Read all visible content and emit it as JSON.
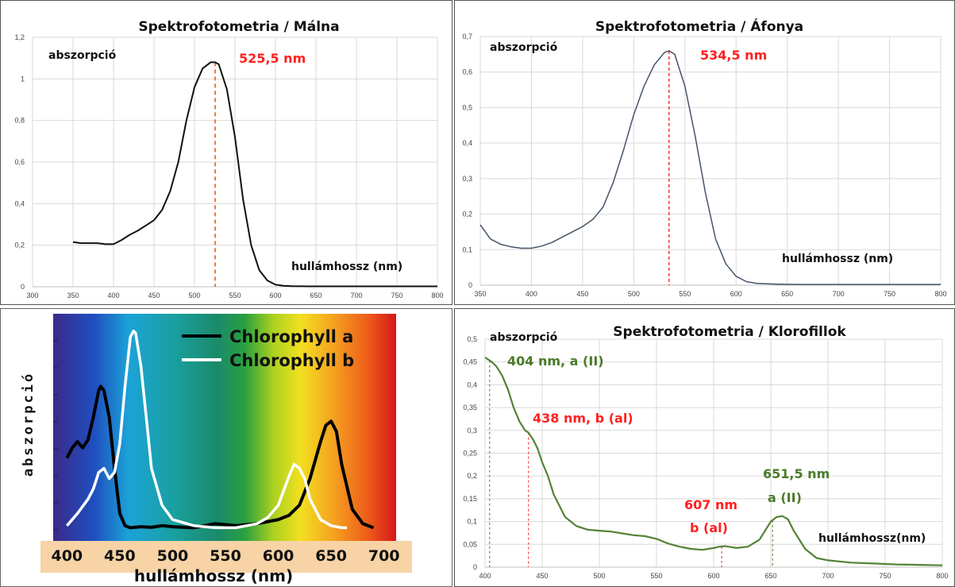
{
  "chart_data": [
    {
      "type": "line",
      "title": "Spektrofotometria / Málna",
      "xlabel": "hullámhossz (nm)",
      "ylabel": "abszorpció",
      "xlim": [
        300,
        800
      ],
      "ylim": [
        0,
        1.2
      ],
      "x_ticks": [
        "300",
        "350",
        "400",
        "450",
        "500",
        "550",
        "600",
        "650",
        "700",
        "750",
        "800"
      ],
      "y_ticks": [
        "0",
        "0,2",
        "0,4",
        "0,6",
        "0,8",
        "1",
        "1,2"
      ],
      "grid": true,
      "line_color": "#111111",
      "marker_color": "#ed7d31",
      "annotation": {
        "text": "525,5 nm",
        "x": 525.5,
        "color": "#ff2020"
      },
      "series": [
        {
          "x": [
            350,
            360,
            370,
            380,
            390,
            400,
            410,
            420,
            430,
            440,
            450,
            460,
            470,
            480,
            490,
            500,
            510,
            520,
            525.5,
            530,
            540,
            550,
            560,
            570,
            580,
            590,
            600,
            610,
            620,
            640,
            660,
            700,
            750,
            800
          ],
          "y": [
            0.215,
            0.21,
            0.21,
            0.21,
            0.205,
            0.205,
            0.225,
            0.25,
            0.27,
            0.295,
            0.32,
            0.37,
            0.46,
            0.6,
            0.8,
            0.96,
            1.05,
            1.08,
            1.08,
            1.07,
            0.95,
            0.72,
            0.42,
            0.2,
            0.08,
            0.03,
            0.01,
            0.005,
            0.003,
            0.002,
            0.002,
            0.002,
            0.002,
            0.002
          ]
        }
      ]
    },
    {
      "type": "line",
      "title": "Spektrofotometria / Áfonya",
      "xlabel": "hullámhossz (nm)",
      "ylabel": "abszorpció",
      "xlim": [
        350,
        800
      ],
      "ylim": [
        0,
        0.7
      ],
      "x_ticks": [
        "350",
        "400",
        "450",
        "500",
        "550",
        "600",
        "650",
        "700",
        "750",
        "800"
      ],
      "y_ticks": [
        "0",
        "0,1",
        "0,2",
        "0,3",
        "0,4",
        "0,5",
        "0,6",
        "0,7"
      ],
      "grid": true,
      "line_color": "#44546a",
      "marker_color": "#ff0000",
      "annotation": {
        "text": "534,5 nm",
        "x": 534.5,
        "color": "#ff2020"
      },
      "series": [
        {
          "x": [
            350,
            360,
            370,
            380,
            390,
            400,
            410,
            420,
            430,
            440,
            450,
            460,
            470,
            480,
            490,
            500,
            510,
            520,
            530,
            534.5,
            540,
            550,
            560,
            570,
            580,
            590,
            600,
            610,
            620,
            640,
            660,
            700,
            750,
            800
          ],
          "y": [
            0.17,
            0.13,
            0.115,
            0.108,
            0.104,
            0.104,
            0.11,
            0.12,
            0.135,
            0.15,
            0.165,
            0.185,
            0.22,
            0.29,
            0.38,
            0.48,
            0.56,
            0.62,
            0.655,
            0.66,
            0.65,
            0.56,
            0.42,
            0.26,
            0.13,
            0.06,
            0.025,
            0.01,
            0.005,
            0.003,
            0.002,
            0.002,
            0.002,
            0.002
          ]
        }
      ]
    },
    {
      "type": "line",
      "title": "",
      "xlabel": "hullámhossz (nm)",
      "ylabel": "abszorpció",
      "xlim": [
        390,
        710
      ],
      "ylim": [
        0,
        1
      ],
      "x_ticks": [
        "400",
        "450",
        "500",
        "550",
        "600",
        "650",
        "700"
      ],
      "grid": false,
      "background": "visible spectrum gradient",
      "series": [
        {
          "name": "Chlorophyll a",
          "color": "#000000",
          "x": [
            400,
            405,
            410,
            415,
            420,
            425,
            430,
            432,
            435,
            440,
            445,
            450,
            455,
            460,
            470,
            480,
            490,
            500,
            520,
            540,
            560,
            580,
            600,
            610,
            620,
            630,
            640,
            645,
            650,
            655,
            660,
            670,
            680,
            690
          ],
          "y": [
            0.35,
            0.4,
            0.43,
            0.4,
            0.44,
            0.55,
            0.68,
            0.7,
            0.68,
            0.55,
            0.3,
            0.08,
            0.02,
            0.01,
            0.015,
            0.012,
            0.02,
            0.015,
            0.01,
            0.03,
            0.02,
            0.03,
            0.05,
            0.07,
            0.12,
            0.25,
            0.43,
            0.51,
            0.53,
            0.48,
            0.32,
            0.1,
            0.03,
            0.01
          ]
        },
        {
          "name": "Chlorophyll b",
          "color": "#ffffff",
          "x": [
            400,
            410,
            420,
            425,
            430,
            435,
            440,
            445,
            450,
            455,
            460,
            463,
            465,
            470,
            475,
            480,
            490,
            500,
            520,
            540,
            560,
            580,
            590,
            600,
            610,
            615,
            620,
            625,
            630,
            640,
            650,
            660,
            665
          ],
          "y": [
            0.02,
            0.08,
            0.15,
            0.2,
            0.28,
            0.3,
            0.25,
            0.28,
            0.42,
            0.7,
            0.94,
            0.97,
            0.96,
            0.8,
            0.55,
            0.3,
            0.12,
            0.05,
            0.02,
            0.01,
            0.01,
            0.03,
            0.06,
            0.12,
            0.26,
            0.32,
            0.3,
            0.25,
            0.15,
            0.05,
            0.02,
            0.01,
            0.01
          ]
        }
      ]
    },
    {
      "type": "line",
      "title": "Spektrofotometria / Klorofillok",
      "xlabel": "hullámhossz(nm)",
      "ylabel": "abszorpció",
      "xlim": [
        400,
        800
      ],
      "ylim": [
        0,
        0.5
      ],
      "x_ticks": [
        "400",
        "450",
        "500",
        "550",
        "600",
        "650",
        "700",
        "750",
        "800"
      ],
      "y_ticks": [
        "0",
        "0,05",
        "0,1",
        "0,15",
        "0,2",
        "0,25",
        "0,3",
        "0,35",
        "0,4",
        "0,45",
        "0,5"
      ],
      "grid": true,
      "line_color": "#548235",
      "annotations": [
        {
          "text": "404 nm, a (II)",
          "x": 404,
          "color": "#4a7a2a"
        },
        {
          "text": "438 nm, b (al)",
          "x": 438,
          "color": "#ff2020"
        },
        {
          "text": "607 nm",
          "text2": "b (al)",
          "x": 607,
          "color": "#ff2020"
        },
        {
          "text": "651,5 nm",
          "text2": "a (II)",
          "x": 651.5,
          "color": "#4a7a2a"
        }
      ],
      "series": [
        {
          "x": [
            400,
            403,
            406,
            410,
            415,
            420,
            425,
            430,
            435,
            438,
            442,
            446,
            450,
            455,
            460,
            470,
            480,
            490,
            500,
            510,
            520,
            530,
            540,
            550,
            560,
            570,
            580,
            590,
            600,
            605,
            610,
            615,
            620,
            630,
            640,
            645,
            650,
            655,
            660,
            665,
            670,
            680,
            690,
            700,
            720,
            740,
            760,
            780,
            800
          ],
          "y": [
            0.46,
            0.455,
            0.45,
            0.44,
            0.42,
            0.39,
            0.35,
            0.32,
            0.3,
            0.295,
            0.28,
            0.26,
            0.23,
            0.2,
            0.16,
            0.11,
            0.09,
            0.082,
            0.08,
            0.078,
            0.074,
            0.07,
            0.068,
            0.062,
            0.052,
            0.045,
            0.04,
            0.038,
            0.042,
            0.045,
            0.046,
            0.044,
            0.042,
            0.045,
            0.06,
            0.08,
            0.1,
            0.11,
            0.112,
            0.105,
            0.08,
            0.04,
            0.02,
            0.015,
            0.01,
            0.008,
            0.006,
            0.005,
            0.004
          ]
        }
      ]
    }
  ]
}
